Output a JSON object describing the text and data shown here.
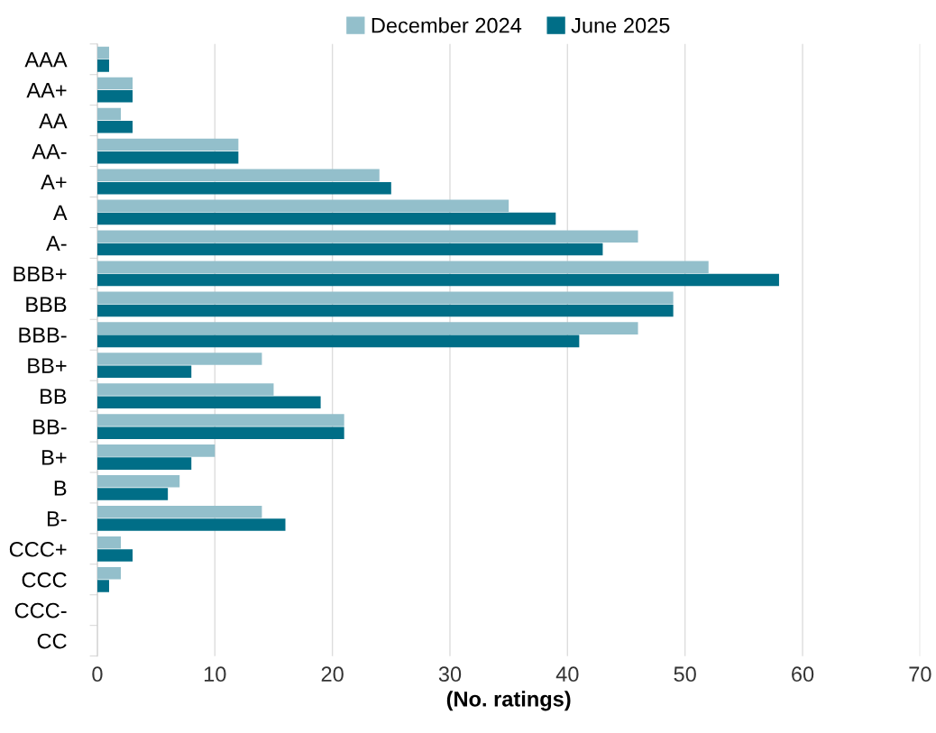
{
  "chart_data": {
    "type": "bar",
    "orientation": "horizontal",
    "xlabel": "(No. ratings)",
    "categories": [
      "AAA",
      "AA+",
      "AA",
      "AA-",
      "A+",
      "A",
      "A-",
      "BBB+",
      "BBB",
      "BBB-",
      "BB+",
      "BB",
      "BB-",
      "B+",
      "B",
      "B-",
      "CCC+",
      "CCC",
      "CCC-",
      "CC"
    ],
    "series": [
      {
        "name": "December 2024",
        "color": "#93bfcb",
        "values": [
          1,
          3,
          2,
          12,
          24,
          35,
          46,
          52,
          49,
          46,
          14,
          15,
          21,
          10,
          7,
          14,
          2,
          2,
          0,
          0
        ]
      },
      {
        "name": "June 2025",
        "color": "#006e87",
        "values": [
          1,
          3,
          3,
          12,
          25,
          39,
          43,
          58,
          49,
          41,
          8,
          19,
          21,
          8,
          6,
          16,
          3,
          1,
          0,
          0
        ]
      }
    ],
    "xlim": [
      0,
      70
    ],
    "xticks": [
      0,
      10,
      20,
      30,
      40,
      50,
      60,
      70
    ],
    "grid": "x",
    "legend": "top"
  }
}
